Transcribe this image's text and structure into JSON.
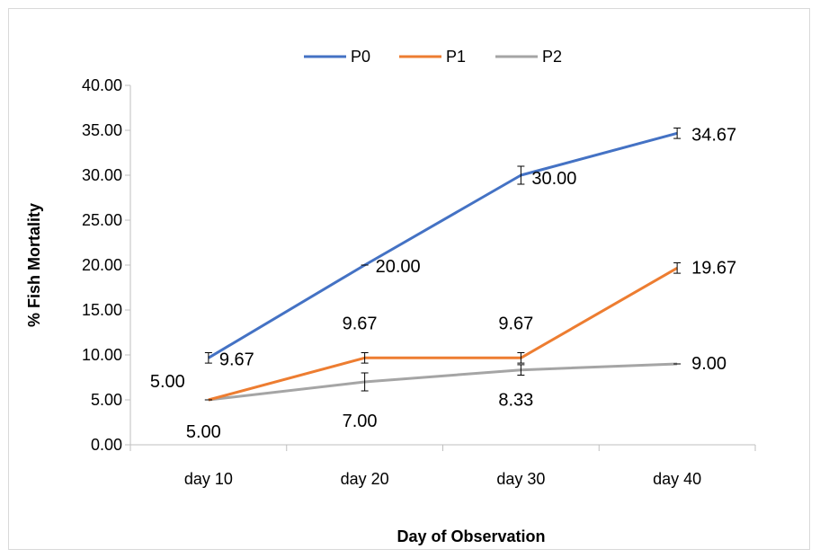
{
  "chart_data": {
    "type": "line",
    "title": "",
    "xlabel": "Day  of Observation",
    "ylabel": "% Fish Mortality",
    "categories": [
      "day 10",
      "day 20",
      "day 30",
      "day 40"
    ],
    "ylim": [
      0,
      40
    ],
    "y_ticks": [
      "0.00",
      "5.00",
      "10.00",
      "15.00",
      "20.00",
      "25.00",
      "30.00",
      "35.00",
      "40.00"
    ],
    "grid": false,
    "legend_position": "top",
    "series": [
      {
        "name": "P0",
        "color": "#4472C4",
        "values": [
          9.67,
          20.0,
          30.0,
          34.67
        ],
        "labels": [
          "9.67",
          "20.00",
          "30.00",
          "34.67"
        ],
        "errors": [
          0.58,
          0.0,
          1.0,
          0.58
        ]
      },
      {
        "name": "P1",
        "color": "#ED7D31",
        "values": [
          5.0,
          9.67,
          9.67,
          19.67
        ],
        "labels": [
          "5.00",
          "9.67",
          "9.67",
          "19.67"
        ],
        "errors": [
          0.0,
          0.58,
          0.58,
          0.58
        ]
      },
      {
        "name": "P2",
        "color": "#A5A5A5",
        "values": [
          5.0,
          7.0,
          8.33,
          9.0
        ],
        "labels": [
          "5.00",
          "7.00",
          "8.33",
          "9.00"
        ],
        "errors": [
          0.0,
          1.0,
          0.58,
          0.0
        ]
      }
    ]
  }
}
